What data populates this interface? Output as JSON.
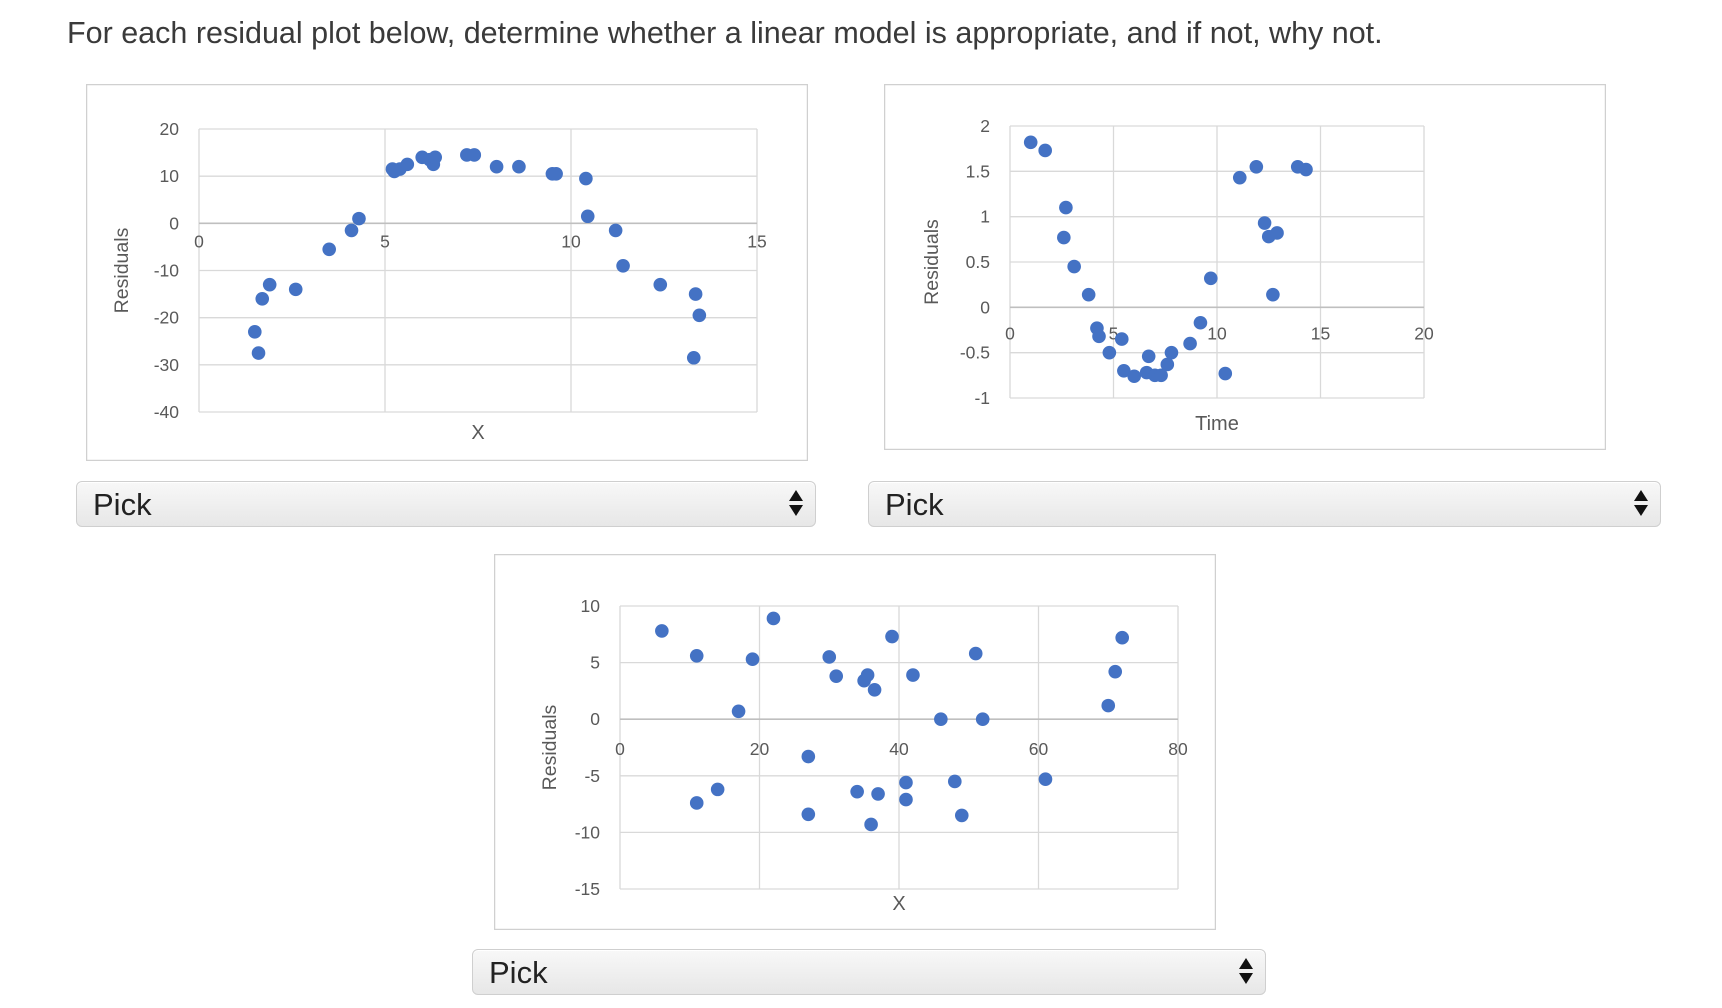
{
  "question": "For each residual plot below, determine whether a linear model is appropriate, and if not, why not.",
  "colors": {
    "point": "#4472c4",
    "grid": "#d9d9d9",
    "frame": "#d0d0d0",
    "tick_text": "#595959"
  },
  "selects": [
    {
      "value": "Pick"
    },
    {
      "value": "Pick"
    },
    {
      "value": "Pick"
    }
  ],
  "chart_data": [
    {
      "type": "scatter",
      "title": "",
      "xlabel": "X",
      "ylabel": "Residuals",
      "xlim": [
        0,
        15
      ],
      "ylim": [
        -40,
        20
      ],
      "x_ticks": [
        "0",
        "5",
        "10",
        "15"
      ],
      "y_ticks": [
        "20",
        "10",
        "0",
        "-10",
        "-20",
        "-30",
        "-40"
      ],
      "grid": true,
      "series": [
        {
          "x": [
            1.5,
            1.6,
            1.7,
            1.9,
            2.6,
            3.5,
            4.1,
            4.3,
            5.2,
            5.25,
            5.4,
            5.6,
            6.0,
            6.2,
            6.3,
            6.35,
            7.2,
            7.4,
            8.0,
            8.6,
            9.5,
            9.6,
            10.4,
            10.45,
            11.2,
            11.4,
            12.4,
            13.3,
            13.35,
            13.45
          ],
          "y": [
            -23,
            -27.5,
            -16,
            -13,
            -14,
            -5.5,
            -1.5,
            1,
            11.5,
            11,
            11.5,
            12.5,
            14,
            13.5,
            12.5,
            14,
            14.5,
            14.5,
            12,
            12,
            10.5,
            10.5,
            9.5,
            1.5,
            -1.5,
            -9,
            -13,
            -28.5,
            -15,
            -19.5
          ]
        }
      ]
    },
    {
      "type": "scatter",
      "title": "",
      "xlabel": "Time",
      "ylabel": "Residuals",
      "xlim": [
        0,
        20
      ],
      "ylim": [
        -1,
        2
      ],
      "x_ticks": [
        "0",
        "5",
        "10",
        "15",
        "20"
      ],
      "y_ticks": [
        "2",
        "1.5",
        "1",
        "0.5",
        "0",
        "-0.5",
        "-1"
      ],
      "grid": true,
      "series": [
        {
          "x": [
            1.0,
            1.7,
            2.6,
            2.7,
            3.1,
            3.8,
            4.2,
            4.3,
            4.8,
            5.4,
            5.5,
            6.0,
            6.6,
            6.7,
            7.0,
            7.3,
            7.6,
            7.8,
            8.7,
            9.2,
            9.7,
            10.4,
            11.1,
            11.9,
            12.3,
            12.5,
            12.7,
            12.9,
            13.9,
            14.3
          ],
          "y": [
            1.82,
            1.73,
            0.77,
            1.1,
            0.45,
            0.14,
            -0.23,
            -0.32,
            -0.5,
            -0.35,
            -0.7,
            -0.76,
            -0.72,
            -0.54,
            -0.75,
            -0.75,
            -0.63,
            -0.5,
            -0.4,
            -0.17,
            0.32,
            -0.73,
            1.43,
            1.55,
            0.93,
            0.78,
            0.14,
            0.82,
            1.55,
            1.52
          ]
        }
      ]
    },
    {
      "type": "scatter",
      "title": "",
      "xlabel": "X",
      "ylabel": "Residuals",
      "xlim": [
        0,
        80
      ],
      "ylim": [
        -15,
        10
      ],
      "x_ticks": [
        "0",
        "20",
        "40",
        "60",
        "80"
      ],
      "y_ticks": [
        "10",
        "5",
        "0",
        "-5",
        "-10",
        "-15"
      ],
      "grid": true,
      "series": [
        {
          "x": [
            6,
            11,
            11,
            14,
            17,
            19,
            22,
            27,
            27,
            30,
            31,
            34,
            35,
            35.5,
            36,
            36.5,
            37,
            39,
            41,
            41,
            42,
            46,
            48,
            49,
            51,
            52,
            61,
            70,
            71,
            72
          ],
          "y": [
            7.8,
            5.6,
            -7.4,
            -6.2,
            0.7,
            5.3,
            8.9,
            -3.3,
            -8.4,
            5.5,
            3.8,
            -6.4,
            3.4,
            3.9,
            -9.3,
            2.6,
            -6.6,
            7.3,
            -5.6,
            -7.1,
            3.9,
            0,
            -5.5,
            -8.5,
            5.8,
            0,
            -5.3,
            1.2,
            4.2,
            7.2
          ]
        }
      ]
    }
  ]
}
